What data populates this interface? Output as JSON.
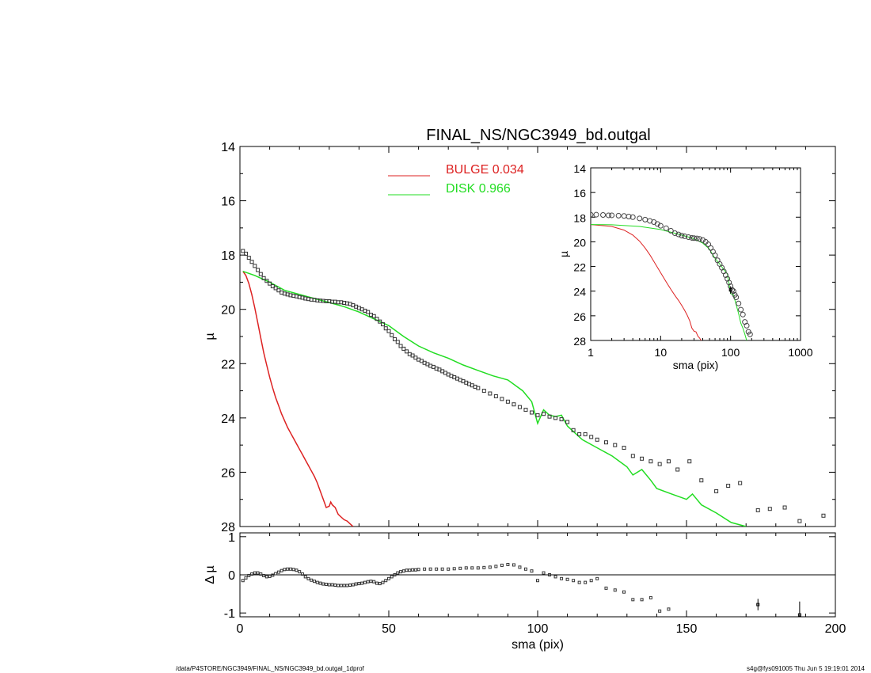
{
  "title": "FINAL_NS/NGC3949_bd.outgal",
  "footer": {
    "left": "/data/P4STORE/NGC3949/FINAL_NS/NGC3949_bd.outgal_1dprof",
    "right": "s4g@fys091005  Thu Jun  5 19:19:01 2014"
  },
  "colors": {
    "bulge": "#dd2222",
    "disk": "#22dd22",
    "data": "#000000"
  },
  "chart_data": [
    {
      "id": "main",
      "type": "scatter",
      "ylabel": "µ",
      "xlim": [
        0,
        200
      ],
      "ylim": [
        28,
        14
      ],
      "xticks": [
        0,
        50,
        100,
        150,
        200
      ],
      "yticks": [
        14,
        16,
        18,
        20,
        22,
        24,
        26,
        28
      ],
      "legend": [
        {
          "label": "BULGE  0.034",
          "color": "#dd2222"
        },
        {
          "label": "DISK  0.966",
          "color": "#22dd22"
        }
      ],
      "legend_placement": "top-center",
      "series": [
        {
          "name": "BULGE  0.034",
          "style": "line",
          "x": [
            1,
            2,
            3,
            4,
            5,
            6,
            7,
            8,
            9,
            10,
            11,
            12,
            13,
            14,
            15,
            16,
            17,
            18,
            19,
            20,
            21,
            22,
            23,
            24,
            25,
            26,
            27,
            28,
            29,
            30,
            30.5,
            31,
            32,
            33,
            34,
            35,
            36,
            37,
            38
          ],
          "y": [
            18.6,
            18.75,
            19.05,
            19.45,
            19.95,
            20.5,
            21.05,
            21.6,
            22.05,
            22.5,
            22.9,
            23.25,
            23.55,
            23.85,
            24.1,
            24.35,
            24.55,
            24.75,
            24.95,
            25.15,
            25.35,
            25.55,
            25.75,
            25.95,
            26.15,
            26.4,
            26.7,
            27.0,
            27.3,
            27.25,
            27.1,
            27.2,
            27.3,
            27.55,
            27.65,
            27.75,
            27.8,
            27.9,
            28.0
          ]
        },
        {
          "name": "DISK  0.966",
          "style": "line",
          "x": [
            1,
            5,
            10,
            15,
            20,
            25,
            30,
            35,
            40,
            45,
            50,
            55,
            60,
            65,
            70,
            75,
            80,
            85,
            90,
            95,
            98,
            100,
            102,
            104,
            106,
            108,
            110,
            115,
            120,
            125,
            130,
            132,
            135,
            138,
            140,
            145,
            150,
            152,
            155,
            160,
            165,
            170
          ],
          "y": [
            18.6,
            18.75,
            19.0,
            19.3,
            19.45,
            19.6,
            19.75,
            19.9,
            20.1,
            20.35,
            20.6,
            21.0,
            21.35,
            21.6,
            21.8,
            22.05,
            22.25,
            22.45,
            22.6,
            23.0,
            23.4,
            24.2,
            23.7,
            23.9,
            23.95,
            23.9,
            24.3,
            24.8,
            25.1,
            25.4,
            25.8,
            26.1,
            25.9,
            26.3,
            26.6,
            26.8,
            27.0,
            26.8,
            27.2,
            27.5,
            27.85,
            28.0
          ]
        },
        {
          "name": "",
          "style": "markers",
          "x": [
            1,
            2,
            3,
            4,
            5,
            6,
            7,
            8,
            9,
            10,
            11,
            12,
            13,
            14,
            15,
            16,
            17,
            18,
            19,
            20,
            21,
            22,
            23,
            24,
            25,
            26,
            27,
            28,
            29,
            30,
            31,
            32,
            33,
            34,
            35,
            36,
            37,
            38,
            39,
            40,
            41,
            42,
            43,
            44,
            45,
            46,
            47,
            48,
            49,
            50,
            51,
            52,
            53,
            54,
            55,
            56,
            57,
            58,
            59,
            60,
            61,
            62,
            63,
            64,
            65,
            66,
            67,
            68,
            69,
            70,
            71,
            72,
            73,
            74,
            75,
            76,
            77,
            78,
            79,
            80,
            82,
            84,
            86,
            88,
            90,
            92,
            94,
            96,
            98,
            100,
            102,
            104,
            106,
            108,
            110,
            112,
            114,
            116,
            118,
            120,
            123,
            126,
            129,
            132,
            135,
            138,
            141,
            144,
            147,
            151,
            155,
            160,
            164,
            168,
            174,
            178,
            183,
            188,
            196
          ],
          "y": [
            17.85,
            17.95,
            18.1,
            18.25,
            18.4,
            18.55,
            18.7,
            18.85,
            18.95,
            19.05,
            19.15,
            19.22,
            19.3,
            19.38,
            19.42,
            19.45,
            19.48,
            19.5,
            19.52,
            19.55,
            19.57,
            19.6,
            19.62,
            19.64,
            19.65,
            19.67,
            19.68,
            19.69,
            19.7,
            19.7,
            19.72,
            19.72,
            19.74,
            19.74,
            19.76,
            19.78,
            19.8,
            19.85,
            19.9,
            19.95,
            20.0,
            20.05,
            20.1,
            20.2,
            20.25,
            20.35,
            20.45,
            20.55,
            20.7,
            20.8,
            20.95,
            21.1,
            21.2,
            21.35,
            21.45,
            21.55,
            21.65,
            21.7,
            21.78,
            21.85,
            21.9,
            21.97,
            22.02,
            22.08,
            22.12,
            22.18,
            22.22,
            22.28,
            22.34,
            22.4,
            22.45,
            22.5,
            22.55,
            22.6,
            22.65,
            22.7,
            22.75,
            22.8,
            22.85,
            22.9,
            23.0,
            23.1,
            23.2,
            23.3,
            23.4,
            23.5,
            23.6,
            23.7,
            23.8,
            23.9,
            23.85,
            23.95,
            24.0,
            24.05,
            24.15,
            24.45,
            24.6,
            24.6,
            24.7,
            24.8,
            24.9,
            25.0,
            25.1,
            25.4,
            25.5,
            25.6,
            25.7,
            25.6,
            25.9,
            25.6,
            26.3,
            26.7,
            26.5,
            26.4,
            27.4,
            27.35,
            27.3,
            27.8,
            27.6
          ]
        }
      ]
    },
    {
      "id": "residual",
      "type": "scatter",
      "xlabel": "sma (pix)",
      "ylabel": "Δ µ",
      "xlim": [
        0,
        200
      ],
      "ylim": [
        -1.1,
        1.1
      ],
      "xticks": [
        0,
        50,
        100,
        150,
        200
      ],
      "yticks": [
        1,
        0,
        -1
      ],
      "zero_line": true,
      "series": [
        {
          "name": "",
          "style": "markers",
          "x": [
            1,
            2,
            3,
            4,
            5,
            6,
            7,
            8,
            9,
            10,
            11,
            12,
            13,
            14,
            15,
            16,
            17,
            18,
            19,
            20,
            21,
            22,
            23,
            24,
            25,
            26,
            27,
            28,
            29,
            30,
            31,
            32,
            33,
            34,
            35,
            36,
            37,
            38,
            39,
            40,
            41,
            42,
            43,
            44,
            45,
            46,
            47,
            48,
            49,
            50,
            51,
            52,
            53,
            54,
            55,
            56,
            57,
            58,
            59,
            60,
            62,
            64,
            66,
            68,
            70,
            72,
            74,
            76,
            78,
            80,
            82,
            84,
            86,
            88,
            90,
            92,
            94,
            96,
            98,
            100,
            102,
            104,
            106,
            108,
            110,
            112,
            114,
            116,
            118,
            120,
            123,
            126,
            129,
            132,
            135,
            138,
            141,
            144
          ],
          "y": [
            -0.15,
            -0.08,
            -0.02,
            0.02,
            0.05,
            0.05,
            0.02,
            -0.02,
            -0.05,
            -0.04,
            -0.01,
            0.03,
            0.07,
            0.11,
            0.14,
            0.15,
            0.15,
            0.14,
            0.12,
            0.08,
            0.02,
            -0.05,
            -0.1,
            -0.14,
            -0.17,
            -0.2,
            -0.22,
            -0.24,
            -0.25,
            -0.26,
            -0.26,
            -0.27,
            -0.28,
            -0.28,
            -0.28,
            -0.28,
            -0.27,
            -0.26,
            -0.24,
            -0.23,
            -0.22,
            -0.2,
            -0.18,
            -0.17,
            -0.18,
            -0.22,
            -0.23,
            -0.2,
            -0.15,
            -0.1,
            -0.05,
            0.0,
            0.05,
            0.08,
            0.1,
            0.12,
            0.12,
            0.13,
            0.13,
            0.14,
            0.15,
            0.15,
            0.15,
            0.15,
            0.15,
            0.16,
            0.17,
            0.18,
            0.18,
            0.18,
            0.19,
            0.2,
            0.22,
            0.25,
            0.27,
            0.26,
            0.2,
            0.15,
            0.1,
            -0.15,
            0.05,
            0.0,
            -0.05,
            -0.1,
            -0.12,
            -0.15,
            -0.2,
            -0.2,
            -0.15,
            -0.1,
            -0.35,
            -0.4,
            -0.45,
            -0.65,
            -0.65,
            -0.6,
            -0.95,
            -0.9
          ]
        }
      ],
      "error_points": [
        {
          "x": 174,
          "y": -0.78,
          "err": 0.15
        },
        {
          "x": 188,
          "y": -1.05,
          "err": 0.35
        }
      ]
    },
    {
      "id": "inset",
      "type": "scatter",
      "xlabel": "sma (pix)",
      "ylabel": "µ",
      "xscale": "log",
      "xlim": [
        1,
        1000
      ],
      "ylim": [
        28,
        14
      ],
      "xticks": [
        1,
        10,
        100,
        1000
      ],
      "yticks": [
        14,
        16,
        18,
        20,
        22,
        24,
        26,
        28
      ],
      "series": [
        {
          "name": "",
          "style": "line",
          "color": "bulge",
          "x": [
            1,
            2,
            3,
            4,
            5,
            6,
            7,
            8,
            10,
            12,
            14,
            16,
            18,
            20,
            22,
            24,
            26,
            28,
            30,
            32,
            34,
            36,
            38
          ],
          "y": [
            18.6,
            18.75,
            19.05,
            19.45,
            19.95,
            20.5,
            21.05,
            21.6,
            22.5,
            23.25,
            23.85,
            24.35,
            24.75,
            25.15,
            25.55,
            25.95,
            26.4,
            27.0,
            27.25,
            27.3,
            27.65,
            27.8,
            28.0
          ]
        },
        {
          "name": "",
          "style": "line",
          "color": "disk",
          "x": [
            1,
            2,
            5,
            10,
            20,
            30,
            40,
            50,
            60,
            70,
            80,
            90,
            100,
            110,
            120,
            130,
            140,
            150,
            160,
            170
          ],
          "y": [
            18.6,
            18.62,
            18.75,
            19.0,
            19.45,
            19.75,
            20.1,
            20.6,
            21.35,
            21.8,
            22.25,
            22.6,
            24.2,
            24.3,
            25.1,
            25.8,
            26.6,
            27.0,
            27.5,
            28.0
          ]
        },
        {
          "name": "",
          "style": "markers",
          "x": [
            1,
            1.2,
            1.5,
            1.8,
            2,
            2.5,
            3,
            3.5,
            4,
            5,
            6,
            7,
            8,
            9,
            10,
            12,
            14,
            16,
            18,
            20,
            22,
            25,
            28,
            30,
            33,
            36,
            40,
            44,
            48,
            52,
            56,
            60,
            65,
            70,
            75,
            80,
            85,
            90,
            95,
            100,
            105,
            110,
            115,
            120,
            130,
            140,
            150,
            160,
            170,
            180,
            190
          ],
          "y": [
            17.8,
            17.8,
            17.82,
            17.85,
            17.85,
            17.88,
            17.9,
            17.95,
            18.0,
            18.1,
            18.2,
            18.3,
            18.4,
            18.55,
            18.7,
            18.9,
            19.1,
            19.3,
            19.4,
            19.5,
            19.55,
            19.62,
            19.68,
            19.7,
            19.72,
            19.76,
            19.85,
            20.0,
            20.2,
            20.5,
            20.8,
            21.1,
            21.5,
            21.8,
            22.1,
            22.4,
            22.7,
            23.0,
            23.3,
            23.6,
            23.9,
            24.0,
            24.3,
            24.5,
            25.0,
            25.5,
            25.9,
            26.5,
            26.8,
            27.3,
            27.5
          ]
        }
      ],
      "error_points": [
        {
          "x": 100,
          "y": 23.9,
          "err": 0.3
        }
      ]
    }
  ]
}
